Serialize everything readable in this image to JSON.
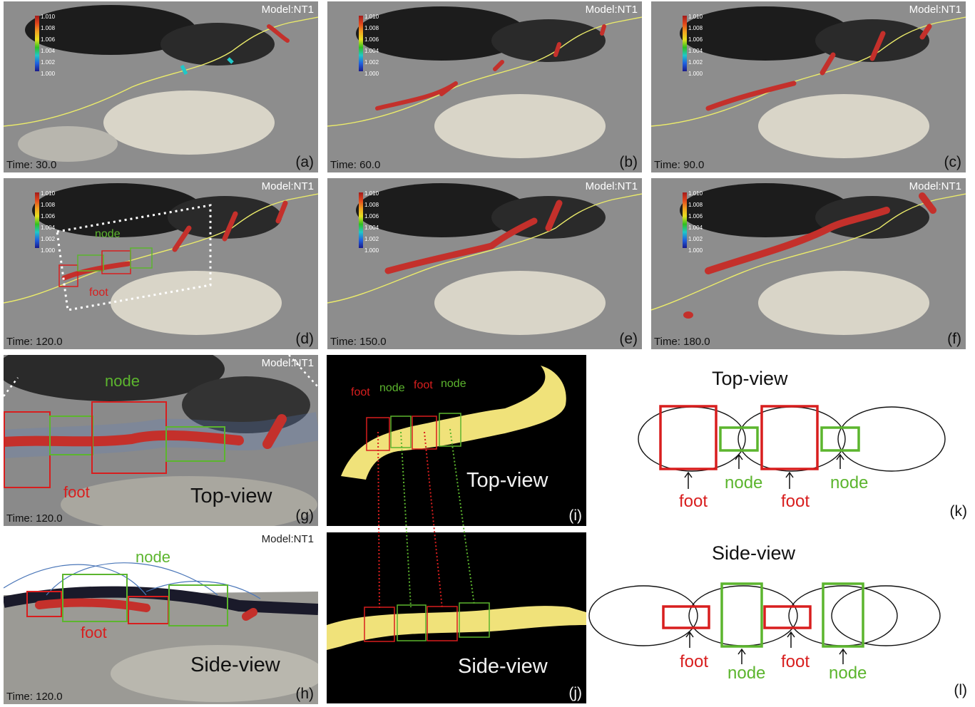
{
  "model_label": "Model:NT1",
  "colorbar_ticks": [
    "1.010",
    "1.008",
    "1.006",
    "1.004",
    "1.002",
    "1.000"
  ],
  "panels": {
    "a": {
      "label": "(a)",
      "time": "Time: 30.0"
    },
    "b": {
      "label": "(b)",
      "time": "Time: 60.0"
    },
    "c": {
      "label": "(c)",
      "time": "Time: 90.0"
    },
    "d": {
      "label": "(d)",
      "time": "Time: 120.0"
    },
    "e": {
      "label": "(e)",
      "time": "Time: 150.0"
    },
    "f": {
      "label": "(f)",
      "time": "Time: 180.0"
    },
    "g": {
      "label": "(g)",
      "time": "Time: 120.0",
      "view": "Top-view"
    },
    "h": {
      "label": "(h)",
      "time": "Time: 120.0",
      "view": "Side-view"
    },
    "i": {
      "label": "(i)",
      "view": "Top-view"
    },
    "j": {
      "label": "(j)",
      "view": "Side-view"
    },
    "k": {
      "label": "(k)",
      "title": "Top-view"
    },
    "l": {
      "label": "(l)",
      "title": "Side-view"
    }
  },
  "annotations": {
    "foot": "foot",
    "node": "node"
  },
  "colors": {
    "foot_box": "#d81e1e",
    "node_box": "#5cb52e",
    "tube": "#f0e27a",
    "flux_rope": "#c4302b"
  }
}
